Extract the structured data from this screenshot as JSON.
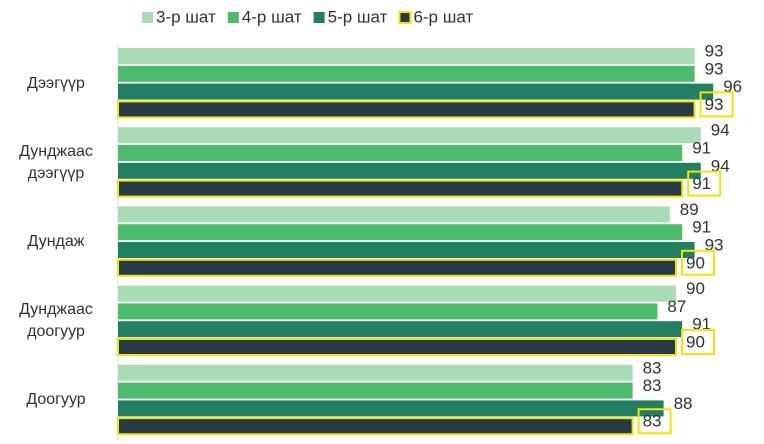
{
  "chart_data": {
    "type": "hbar",
    "categories": [
      "Дээгүүр",
      "Дунджаас дээгүүр",
      "Дундаж",
      "Дунджаас доогуур",
      "Доогуур"
    ],
    "series": [
      {
        "name": "3-р шат",
        "color": "#a8dcb4",
        "values": [
          93,
          94,
          89,
          90,
          83
        ]
      },
      {
        "name": "4-р шат",
        "color": "#4dbb6c",
        "values": [
          93,
          91,
          91,
          87,
          83
        ]
      },
      {
        "name": "5-р шат",
        "color": "#228062",
        "values": [
          96,
          94,
          93,
          91,
          88
        ]
      },
      {
        "name": "6-р шат",
        "color": "#263a4a",
        "outline": "#f5e400",
        "values": [
          93,
          91,
          90,
          90,
          83
        ]
      }
    ],
    "xlim": [
      0,
      100
    ],
    "legend": "top"
  }
}
